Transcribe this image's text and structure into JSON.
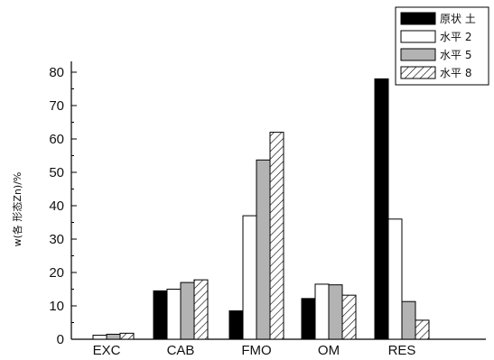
{
  "chart_data": {
    "type": "bar",
    "categories": [
      "EXC",
      "CAB",
      "FMO",
      "OM",
      "RES"
    ],
    "series": [
      {
        "name": "原状 土",
        "fill": "#000000",
        "pattern": "solid",
        "values": [
          0,
          14.5,
          8.5,
          12.2,
          78.0
        ]
      },
      {
        "name": "水平 2",
        "fill": "#ffffff",
        "pattern": "solid",
        "values": [
          1.2,
          15.0,
          37.0,
          16.5,
          36.0
        ]
      },
      {
        "name": "水平 5",
        "fill": "#b3b3b3",
        "pattern": "solid",
        "values": [
          1.5,
          17.0,
          53.7,
          16.3,
          11.3
        ]
      },
      {
        "name": "水平 8",
        "fill": "#ffffff",
        "pattern": "hatch",
        "values": [
          1.8,
          17.8,
          62.0,
          13.2,
          5.7
        ]
      }
    ],
    "ylabel": "w(各 形态Zn)/%",
    "ylim": [
      0,
      80
    ],
    "yticks": [
      0,
      10,
      20,
      30,
      40,
      50,
      60,
      70,
      80
    ],
    "legend_position": "top-right",
    "grid": false
  }
}
